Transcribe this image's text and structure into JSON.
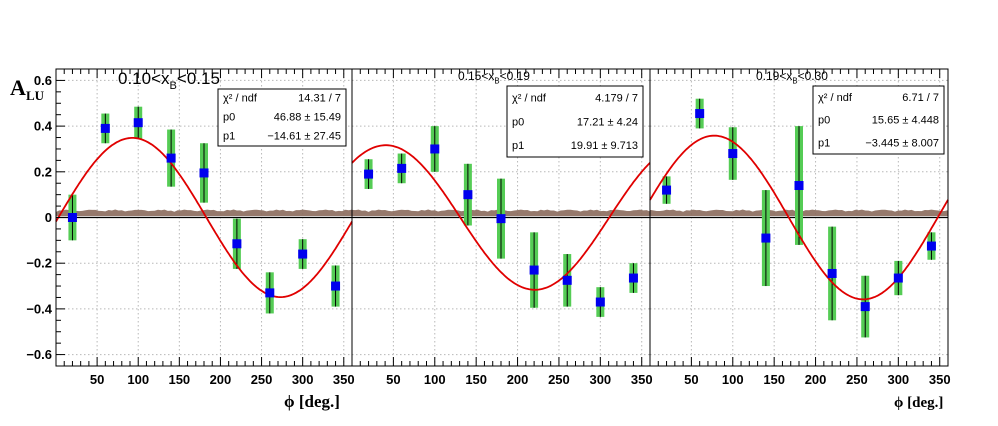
{
  "chart_data": {
    "type": "scatter",
    "ylabel": "A",
    "ylabel_sub": "LU",
    "xlabel_left": "ϕ [deg.]",
    "xlabel_right": "ϕ [deg.]",
    "grid": true,
    "xlim": [
      0,
      360
    ],
    "ylim": [
      -0.65,
      0.65
    ],
    "y_ticks": [
      -0.6,
      -0.4,
      -0.2,
      0,
      0.2,
      0.4,
      0.6
    ],
    "y_tick_labels": [
      "−0.6",
      "−0.4",
      "−0.2",
      "0",
      "0.2",
      "0.4",
      "0.6"
    ],
    "x_ticks": [
      50,
      100,
      150,
      200,
      250,
      300,
      350
    ],
    "x_tick_labels": [
      "50",
      "100",
      "150",
      "200",
      "250",
      "300",
      "350"
    ],
    "colors": {
      "points": "#0000ee",
      "stat_band": "#55cc55",
      "fit": "#e00000",
      "systematic": "#8b6a5c"
    },
    "panels": [
      {
        "title_pre": "0.10<x",
        "title_sub": "B",
        "title_post": "<0.15",
        "stats": [
          {
            "label": "χ² / ndf",
            "value": "14.31 / 7"
          },
          {
            "label": "p0",
            "value": "46.88 ± 15.49"
          },
          {
            "label": "p1",
            "value": "−14.61 ± 27.45"
          }
        ],
        "fit": {
          "amp": 0.3483,
          "phase_deg": -2.9
        },
        "points": [
          {
            "x": 20,
            "y": 0.0,
            "err": 0.1
          },
          {
            "x": 60,
            "y": 0.39,
            "err": 0.065
          },
          {
            "x": 100,
            "y": 0.415,
            "err": 0.07
          },
          {
            "x": 140,
            "y": 0.26,
            "err": 0.125
          },
          {
            "x": 180,
            "y": 0.195,
            "err": 0.13
          },
          {
            "x": 220,
            "y": -0.115,
            "err": 0.11
          },
          {
            "x": 260,
            "y": -0.33,
            "err": 0.09
          },
          {
            "x": 300,
            "y": -0.16,
            "err": 0.065
          },
          {
            "x": 340,
            "y": -0.3,
            "err": 0.09
          }
        ]
      },
      {
        "title_pre": "0.15<x",
        "title_sub": "B",
        "title_post": "<0.19",
        "stats": [
          {
            "label": "χ² / ndf",
            "value": "4.179 / 7"
          },
          {
            "label": "p0",
            "value": "17.21 ±  4.24"
          },
          {
            "label": "p1",
            "value": "19.91 ± 9.713"
          }
        ],
        "fit": {
          "amp": 0.3164,
          "phase_deg": 49.2
        },
        "points": [
          {
            "x": 20,
            "y": 0.19,
            "err": 0.065
          },
          {
            "x": 60,
            "y": 0.215,
            "err": 0.065
          },
          {
            "x": 100,
            "y": 0.3,
            "err": 0.1
          },
          {
            "x": 140,
            "y": 0.1,
            "err": 0.135
          },
          {
            "x": 180,
            "y": -0.005,
            "err": 0.175
          },
          {
            "x": 220,
            "y": -0.23,
            "err": 0.165
          },
          {
            "x": 260,
            "y": -0.275,
            "err": 0.115
          },
          {
            "x": 300,
            "y": -0.37,
            "err": 0.065
          },
          {
            "x": 340,
            "y": -0.265,
            "err": 0.065
          }
        ]
      },
      {
        "title_pre": "0.19<x",
        "title_sub": "B",
        "title_post": "<0.30",
        "stats": [
          {
            "label": "χ² / ndf",
            "value": "6.71 / 7"
          },
          {
            "label": "p0",
            "value": "15.65 ± 4.448"
          },
          {
            "label": "p1",
            "value": "−3.445 ± 8.007"
          }
        ],
        "fit": {
          "amp": 0.3583,
          "phase_deg": 12.4
        },
        "points": [
          {
            "x": 20,
            "y": 0.12,
            "err": 0.06
          },
          {
            "x": 60,
            "y": 0.455,
            "err": 0.065
          },
          {
            "x": 100,
            "y": 0.28,
            "err": 0.115
          },
          {
            "x": 140,
            "y": -0.09,
            "err": 0.21
          },
          {
            "x": 180,
            "y": 0.14,
            "err": 0.26
          },
          {
            "x": 220,
            "y": -0.245,
            "err": 0.205
          },
          {
            "x": 260,
            "y": -0.39,
            "err": 0.135
          },
          {
            "x": 300,
            "y": -0.265,
            "err": 0.075
          },
          {
            "x": 340,
            "y": -0.125,
            "err": 0.06
          }
        ]
      }
    ]
  }
}
